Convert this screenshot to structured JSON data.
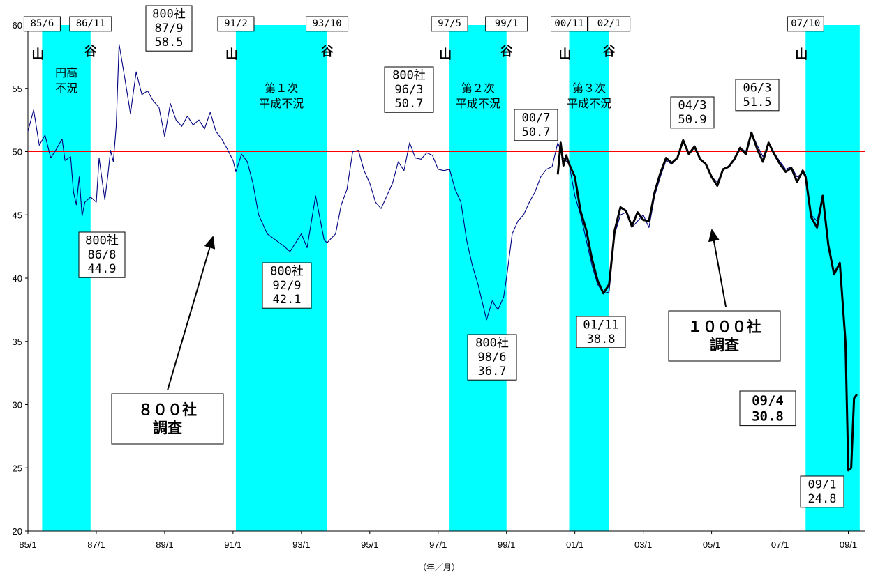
{
  "chart_data": {
    "type": "line",
    "xlabel": "（年／月）",
    "ylabel": "",
    "ylim": [
      20,
      60
    ],
    "yticks": [
      "20",
      "25",
      "30",
      "35",
      "40",
      "45",
      "50",
      "55",
      "60"
    ],
    "xticks": [
      "85/1",
      "87/1",
      "89/1",
      "91/1",
      "93/1",
      "95/1",
      "97/1",
      "99/1",
      "01/1",
      "03/1",
      "05/1",
      "07/1",
      "09/1"
    ],
    "reference_line": {
      "value": 50,
      "color": "#ff0000"
    },
    "recession_bands": [
      {
        "start": "85/6",
        "end": "86/11",
        "peak_label": "85/6",
        "trough_label": "86/11",
        "peak_mark": "山",
        "trough_mark": "谷",
        "name": "円高\n不況"
      },
      {
        "start": "91/2",
        "end": "93/10",
        "peak_label": "91/2",
        "trough_label": "93/10",
        "peak_mark": "山",
        "trough_mark": "谷",
        "name": "第１次\n平成不況"
      },
      {
        "start": "97/5",
        "end": "99/1",
        "peak_label": "97/5",
        "trough_label": "99/1",
        "peak_mark": "山",
        "trough_mark": "谷",
        "name": "第２次\n平成不況"
      },
      {
        "start": "00/11",
        "end": "02/1",
        "peak_label": "00/11",
        "trough_label": "02/1",
        "peak_mark": "山",
        "trough_mark": "谷",
        "name": "第３次\n平成不況"
      },
      {
        "start": "07/10",
        "end": "09/5",
        "peak_label": "07/10",
        "trough_label": "",
        "peak_mark": "山",
        "trough_mark": "",
        "name": ""
      }
    ],
    "band_color": "#00ffff",
    "series": [
      {
        "color": "#000080",
        "stroke": "thin",
        "points": [
          [
            "85/1",
            51.6
          ],
          [
            "85/3",
            53.3
          ],
          [
            "85/5",
            50.5
          ],
          [
            "85/7",
            51.3
          ],
          [
            "85/9",
            49.5
          ],
          [
            "85/11",
            50.2
          ],
          [
            "86/1",
            51.0
          ],
          [
            "86/2",
            49.3
          ],
          [
            "86/4",
            49.6
          ],
          [
            "86/5",
            46.8
          ],
          [
            "86/6",
            45.8
          ],
          [
            "86/7",
            48.0
          ],
          [
            "86/8",
            44.9
          ],
          [
            "86/9",
            46.0
          ],
          [
            "86/11",
            46.4
          ],
          [
            "87/1",
            46.0
          ],
          [
            "87/2",
            49.5
          ],
          [
            "87/3",
            47.8
          ],
          [
            "87/4",
            46.2
          ],
          [
            "87/5",
            48.0
          ],
          [
            "87/6",
            50.1
          ],
          [
            "87/7",
            49.2
          ],
          [
            "87/8",
            52.0
          ],
          [
            "87/9",
            58.5
          ],
          [
            "87/11",
            55.8
          ],
          [
            "88/1",
            53.0
          ],
          [
            "88/3",
            56.3
          ],
          [
            "88/5",
            54.5
          ],
          [
            "88/7",
            54.8
          ],
          [
            "88/9",
            54.0
          ],
          [
            "88/11",
            53.5
          ],
          [
            "89/1",
            51.2
          ],
          [
            "89/3",
            53.8
          ],
          [
            "89/5",
            52.5
          ],
          [
            "89/7",
            52.0
          ],
          [
            "89/9",
            52.8
          ],
          [
            "89/11",
            52.1
          ],
          [
            "90/1",
            52.5
          ],
          [
            "90/3",
            51.8
          ],
          [
            "90/5",
            53.1
          ],
          [
            "90/7",
            51.6
          ],
          [
            "90/9",
            51.0
          ],
          [
            "90/11",
            50.2
          ],
          [
            "91/1",
            49.3
          ],
          [
            "91/2",
            48.4
          ],
          [
            "91/4",
            49.8
          ],
          [
            "91/6",
            49.2
          ],
          [
            "91/8",
            47.5
          ],
          [
            "91/10",
            45.0
          ],
          [
            "92/1",
            43.5
          ],
          [
            "92/4",
            43.0
          ],
          [
            "92/7",
            42.5
          ],
          [
            "92/9",
            42.1
          ],
          [
            "92/11",
            42.8
          ],
          [
            "93/1",
            43.5
          ],
          [
            "93/3",
            42.4
          ],
          [
            "93/6",
            46.5
          ],
          [
            "93/9",
            43.0
          ],
          [
            "93/10",
            42.8
          ],
          [
            "94/1",
            43.5
          ],
          [
            "94/3",
            45.8
          ],
          [
            "94/5",
            47.0
          ],
          [
            "94/7",
            50.0
          ],
          [
            "94/9",
            50.1
          ],
          [
            "94/11",
            48.5
          ],
          [
            "95/1",
            47.5
          ],
          [
            "95/3",
            46.0
          ],
          [
            "95/5",
            45.5
          ],
          [
            "95/7",
            46.5
          ],
          [
            "95/9",
            47.5
          ],
          [
            "95/11",
            49.2
          ],
          [
            "96/1",
            48.5
          ],
          [
            "96/3",
            50.7
          ],
          [
            "96/5",
            49.5
          ],
          [
            "96/7",
            49.4
          ],
          [
            "96/9",
            49.9
          ],
          [
            "96/11",
            49.7
          ],
          [
            "97/1",
            48.6
          ],
          [
            "97/3",
            48.5
          ],
          [
            "97/5",
            48.6
          ],
          [
            "97/7",
            47.0
          ],
          [
            "97/9",
            46.0
          ],
          [
            "97/11",
            43.0
          ],
          [
            "98/1",
            41.0
          ],
          [
            "98/3",
            39.5
          ],
          [
            "98/6",
            36.7
          ],
          [
            "98/8",
            38.2
          ],
          [
            "98/10",
            37.5
          ],
          [
            "98/12",
            38.5
          ],
          [
            "99/1",
            40.0
          ],
          [
            "99/3",
            43.5
          ],
          [
            "99/5",
            44.5
          ],
          [
            "99/7",
            45.0
          ],
          [
            "99/9",
            46.0
          ],
          [
            "99/11",
            46.8
          ],
          [
            "00/1",
            48.0
          ],
          [
            "00/3",
            48.6
          ],
          [
            "00/5",
            48.8
          ],
          [
            "00/7",
            50.7
          ],
          [
            "00/9",
            49.5
          ],
          [
            "00/11",
            49.0
          ],
          [
            "01/1",
            46.5
          ],
          [
            "01/3",
            45.0
          ],
          [
            "01/5",
            43.0
          ],
          [
            "01/7",
            41.0
          ],
          [
            "01/9",
            39.5
          ],
          [
            "01/11",
            38.8
          ],
          [
            "02/1",
            38.9
          ],
          [
            "02/3",
            43.5
          ],
          [
            "02/5",
            45.0
          ],
          [
            "02/7",
            45.2
          ],
          [
            "02/9",
            44.0
          ],
          [
            "02/11",
            44.5
          ],
          [
            "03/1",
            45.0
          ],
          [
            "03/3",
            44.0
          ],
          [
            "03/5",
            46.5
          ],
          [
            "03/7",
            48.0
          ],
          [
            "03/9",
            49.3
          ],
          [
            "03/11",
            49.0
          ],
          [
            "04/1",
            49.5
          ],
          [
            "04/3",
            50.9
          ],
          [
            "04/5",
            49.8
          ],
          [
            "04/7",
            50.3
          ],
          [
            "04/9",
            49.5
          ],
          [
            "04/11",
            49.0
          ],
          [
            "05/1",
            48.0
          ],
          [
            "05/3",
            47.6
          ],
          [
            "05/5",
            48.5
          ],
          [
            "05/7",
            48.9
          ],
          [
            "05/9",
            49.3
          ],
          [
            "05/11",
            50.3
          ],
          [
            "06/1",
            50.0
          ],
          [
            "06/3",
            51.5
          ],
          [
            "06/5",
            50.5
          ],
          [
            "06/7",
            49.6
          ],
          [
            "06/9",
            50.6
          ],
          [
            "06/11",
            49.9
          ],
          [
            "07/1",
            49.2
          ],
          [
            "07/3",
            48.6
          ],
          [
            "07/5",
            48.8
          ],
          [
            "07/7",
            48.0
          ],
          [
            "07/9",
            48.3
          ],
          [
            "07/10",
            48.2
          ],
          [
            "07/12",
            45.0
          ],
          [
            "08/2",
            44.5
          ],
          [
            "08/4",
            46.5
          ],
          [
            "08/6",
            42.5
          ],
          [
            "08/8",
            40.5
          ],
          [
            "08/10",
            41.2
          ],
          [
            "08/12",
            35.0
          ],
          [
            "09/1",
            24.8
          ],
          [
            "09/2",
            25.0
          ],
          [
            "09/3",
            30.5
          ],
          [
            "09/4",
            30.8
          ]
        ]
      },
      {
        "color": "#000000",
        "stroke": "bold",
        "points": [
          [
            "00/7",
            48.2
          ],
          [
            "00/8",
            50.7
          ],
          [
            "00/9",
            48.9
          ],
          [
            "00/10",
            49.7
          ],
          [
            "00/11",
            49.0
          ],
          [
            "01/1",
            48.0
          ],
          [
            "01/3",
            45.3
          ],
          [
            "01/5",
            43.8
          ],
          [
            "01/7",
            41.5
          ],
          [
            "01/9",
            39.8
          ],
          [
            "01/11",
            38.8
          ],
          [
            "02/1",
            39.5
          ],
          [
            "02/3",
            43.8
          ],
          [
            "02/5",
            45.6
          ],
          [
            "02/7",
            45.3
          ],
          [
            "02/9",
            44.1
          ],
          [
            "02/11",
            45.2
          ],
          [
            "03/1",
            44.6
          ],
          [
            "03/3",
            44.5
          ],
          [
            "03/5",
            46.8
          ],
          [
            "03/7",
            48.3
          ],
          [
            "03/9",
            49.5
          ],
          [
            "03/11",
            49.1
          ],
          [
            "04/1",
            49.5
          ],
          [
            "04/3",
            50.9
          ],
          [
            "04/5",
            49.8
          ],
          [
            "04/7",
            50.4
          ],
          [
            "04/9",
            49.4
          ],
          [
            "04/11",
            49.0
          ],
          [
            "05/1",
            48.0
          ],
          [
            "05/3",
            47.3
          ],
          [
            "05/5",
            48.6
          ],
          [
            "05/7",
            48.8
          ],
          [
            "05/9",
            49.4
          ],
          [
            "05/11",
            50.3
          ],
          [
            "06/1",
            49.8
          ],
          [
            "06/3",
            51.5
          ],
          [
            "06/5",
            50.2
          ],
          [
            "06/7",
            49.2
          ],
          [
            "06/9",
            50.7
          ],
          [
            "06/11",
            49.8
          ],
          [
            "07/1",
            49.0
          ],
          [
            "07/3",
            48.4
          ],
          [
            "07/5",
            48.7
          ],
          [
            "07/7",
            47.6
          ],
          [
            "07/9",
            48.5
          ],
          [
            "07/10",
            48.0
          ],
          [
            "07/12",
            44.8
          ],
          [
            "08/2",
            44.0
          ],
          [
            "08/4",
            46.5
          ],
          [
            "08/6",
            42.6
          ],
          [
            "08/8",
            40.3
          ],
          [
            "08/10",
            41.2
          ],
          [
            "08/12",
            35.0
          ],
          [
            "09/1",
            24.8
          ],
          [
            "09/2",
            25.0
          ],
          [
            "09/3",
            30.5
          ],
          [
            "09/4",
            30.8
          ]
        ]
      }
    ],
    "annotations": [
      {
        "text": "800社\n87/9\n58.5",
        "x": "87/9",
        "y": 58.5
      },
      {
        "text": "800社\n86/8\n44.9",
        "x": "86/8",
        "y": 44.9
      },
      {
        "text": "800社\n92/9\n42.1",
        "x": "92/9",
        "y": 42.1
      },
      {
        "text": "800社\n96/3\n50.7",
        "x": "96/3",
        "y": 50.7
      },
      {
        "text": "800社\n98/6\n36.7",
        "x": "98/6",
        "y": 36.7
      },
      {
        "text": "00/7\n50.7",
        "x": "00/7",
        "y": 50.7
      },
      {
        "text": "01/11\n38.8",
        "x": "01/11",
        "y": 38.8
      },
      {
        "text": "04/3\n50.9",
        "x": "04/3",
        "y": 50.9
      },
      {
        "text": "06/3\n51.5",
        "x": "06/3",
        "y": 51.5
      },
      {
        "text": "09/1\n24.8",
        "x": "09/1",
        "y": 24.8
      },
      {
        "text": "09/4\n30.8",
        "x": "09/4",
        "y": 30.8
      },
      {
        "text": "８００社\n調査",
        "x": "",
        "y": null
      },
      {
        "text": "１０００社\n調査",
        "x": "",
        "y": null
      }
    ]
  }
}
